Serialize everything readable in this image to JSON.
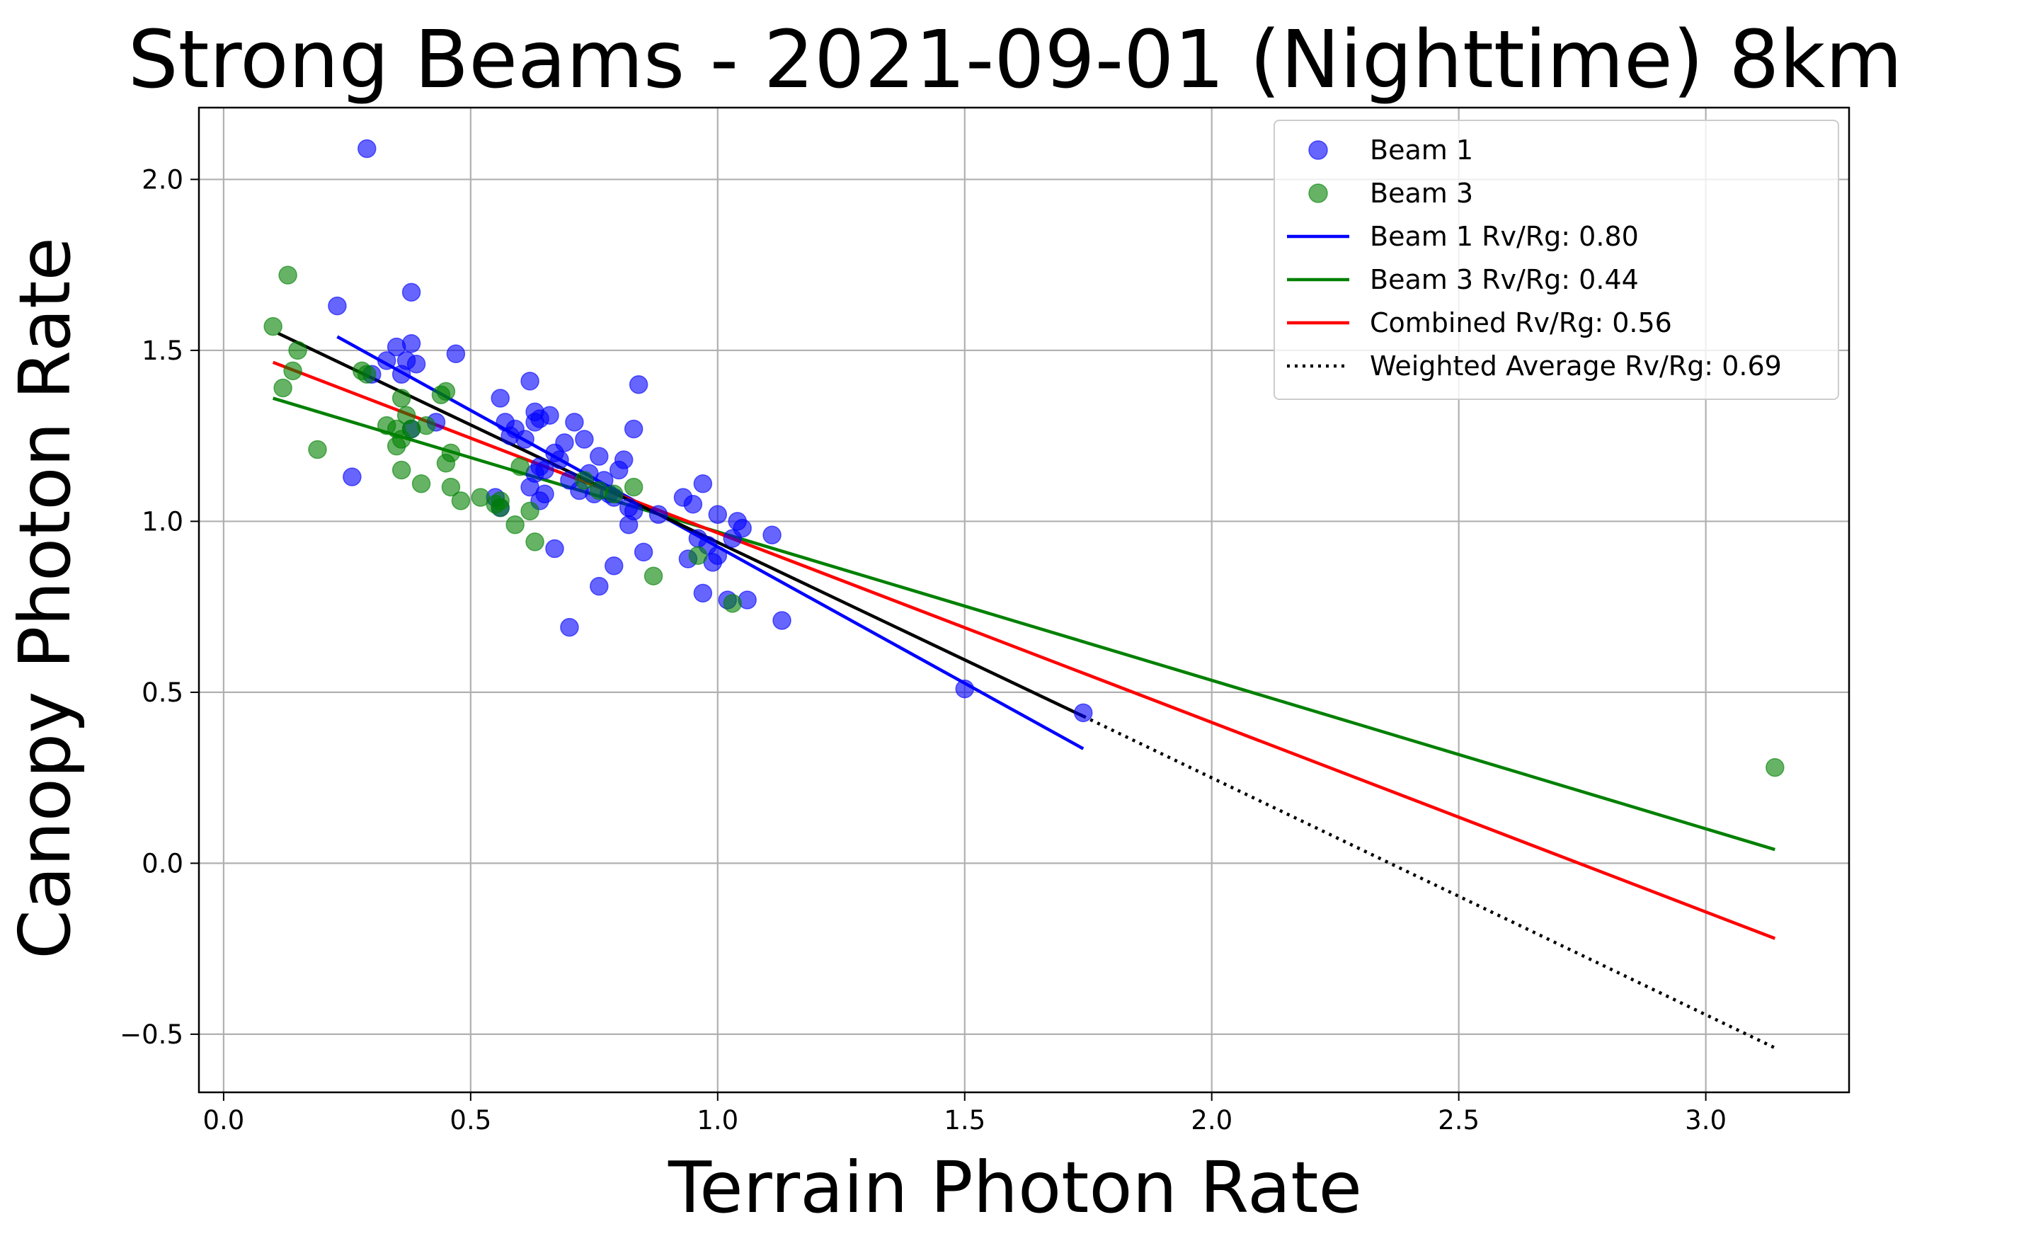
{
  "chart_data": {
    "type": "scatter",
    "title": "Strong Beams - 2021-09-01 (Nighttime) 8km",
    "xlabel": "Terrain Photon Rate",
    "ylabel": "Canopy Photon Rate",
    "xlim": [
      -0.05,
      3.29
    ],
    "ylim": [
      -0.67,
      2.21
    ],
    "xticks": [
      0.0,
      0.5,
      1.0,
      1.5,
      2.0,
      2.5,
      3.0
    ],
    "xtick_labels": [
      "0.0",
      "0.5",
      "1.0",
      "1.5",
      "2.0",
      "2.5",
      "3.0"
    ],
    "yticks": [
      -0.5,
      0.0,
      0.5,
      1.0,
      1.5,
      2.0
    ],
    "ytick_labels": [
      "−0.5",
      "0.0",
      "0.5",
      "1.0",
      "1.5",
      "2.0"
    ],
    "grid": true,
    "legend_position": "top-right",
    "series": [
      {
        "name": "Beam 1",
        "kind": "scatter",
        "color": "#0000ff",
        "x": [
          0.29,
          0.23,
          0.38,
          0.33,
          0.35,
          0.36,
          0.37,
          0.38,
          0.39,
          0.3,
          0.26,
          0.38,
          0.47,
          0.43,
          0.56,
          0.57,
          0.58,
          0.59,
          0.61,
          0.62,
          0.63,
          0.63,
          0.64,
          0.64,
          0.65,
          0.66,
          0.67,
          0.68,
          0.69,
          0.7,
          0.71,
          0.72,
          0.73,
          0.74,
          0.75,
          0.76,
          0.77,
          0.78,
          0.79,
          0.8,
          0.81,
          0.82,
          0.83,
          0.83,
          0.84,
          0.55,
          0.56,
          0.62,
          0.63,
          0.64,
          0.65,
          0.67,
          0.7,
          0.76,
          0.79,
          0.82,
          0.85,
          0.88,
          0.93,
          0.94,
          0.95,
          0.96,
          0.97,
          0.97,
          0.98,
          0.99,
          1.0,
          1.0,
          1.02,
          1.03,
          1.04,
          1.05,
          1.06,
          1.11,
          1.13,
          1.5,
          1.74
        ],
        "y": [
          2.09,
          1.63,
          1.67,
          1.47,
          1.51,
          1.43,
          1.47,
          1.52,
          1.46,
          1.43,
          1.13,
          1.27,
          1.49,
          1.29,
          1.36,
          1.29,
          1.25,
          1.27,
          1.24,
          1.41,
          1.32,
          1.29,
          1.3,
          1.16,
          1.15,
          1.31,
          1.2,
          1.18,
          1.23,
          1.12,
          1.29,
          1.09,
          1.24,
          1.14,
          1.08,
          1.19,
          1.12,
          1.08,
          1.07,
          1.15,
          1.18,
          1.04,
          1.27,
          1.03,
          1.4,
          1.07,
          1.04,
          1.1,
          1.14,
          1.06,
          1.08,
          0.92,
          0.69,
          0.81,
          0.87,
          0.99,
          0.91,
          1.02,
          1.07,
          0.89,
          1.05,
          0.95,
          1.11,
          0.79,
          0.93,
          0.88,
          1.02,
          0.9,
          0.77,
          0.95,
          1.0,
          0.98,
          0.77,
          0.96,
          0.71,
          0.51,
          0.44
        ]
      },
      {
        "name": "Beam 3",
        "kind": "scatter",
        "color": "#008000",
        "x": [
          0.1,
          0.13,
          0.15,
          0.14,
          0.12,
          0.19,
          0.28,
          0.29,
          0.33,
          0.35,
          0.35,
          0.36,
          0.37,
          0.36,
          0.36,
          0.38,
          0.4,
          0.41,
          0.44,
          0.45,
          0.46,
          0.45,
          0.46,
          0.48,
          0.52,
          0.55,
          0.56,
          0.56,
          0.59,
          0.6,
          0.62,
          0.63,
          0.73,
          0.76,
          0.79,
          0.83,
          0.87,
          0.96,
          1.03,
          3.14
        ],
        "y": [
          1.57,
          1.72,
          1.5,
          1.44,
          1.39,
          1.21,
          1.44,
          1.43,
          1.28,
          1.27,
          1.22,
          1.24,
          1.31,
          1.36,
          1.15,
          1.27,
          1.11,
          1.28,
          1.37,
          1.38,
          1.2,
          1.17,
          1.1,
          1.06,
          1.07,
          1.05,
          1.04,
          1.06,
          0.99,
          1.16,
          1.03,
          0.94,
          1.12,
          1.09,
          1.08,
          1.1,
          0.84,
          0.9,
          0.76,
          0.28
        ]
      },
      {
        "name": "Beam 1 Rv/Rg: 0.80",
        "kind": "line",
        "color": "#0000ff",
        "style": "solid",
        "x": [
          0.23,
          1.74
        ],
        "y": [
          1.54,
          0.335
        ]
      },
      {
        "name": "Beam 3 Rv/Rg: 0.44",
        "kind": "line",
        "color": "#008000",
        "style": "solid",
        "x": [
          0.1,
          3.14
        ],
        "y": [
          1.36,
          0.04
        ]
      },
      {
        "name": "Combined Rv/Rg: 0.56",
        "kind": "line",
        "color": "#ff0000",
        "style": "solid",
        "x": [
          0.1,
          3.14
        ],
        "y": [
          1.465,
          -0.22
        ]
      },
      {
        "name": "Weighted Average Rv/Rg: 0.69",
        "kind": "line",
        "color": "#000000",
        "style": "solid",
        "x": [
          0.11,
          1.74
        ],
        "y": [
          1.55,
          0.43
        ]
      },
      {
        "name": "Weighted Average Rv/Rg: 0.69",
        "kind": "line",
        "color": "#000000",
        "style": "dotted",
        "x": [
          1.74,
          3.14
        ],
        "y": [
          0.43,
          -0.54
        ]
      }
    ],
    "legend": [
      {
        "label": "Beam 1",
        "marker": "circle",
        "color": "#0000ff"
      },
      {
        "label": "Beam 3",
        "marker": "circle",
        "color": "#008000"
      },
      {
        "label": "Beam 1 Rv/Rg: 0.80",
        "marker": "line",
        "color": "#0000ff",
        "style": "solid"
      },
      {
        "label": "Beam 3 Rv/Rg: 0.44",
        "marker": "line",
        "color": "#008000",
        "style": "solid"
      },
      {
        "label": "Combined Rv/Rg: 0.56",
        "marker": "line",
        "color": "#ff0000",
        "style": "solid"
      },
      {
        "label": "Weighted Average Rv/Rg: 0.69",
        "marker": "line",
        "color": "#000000",
        "style": "dotted"
      }
    ]
  }
}
